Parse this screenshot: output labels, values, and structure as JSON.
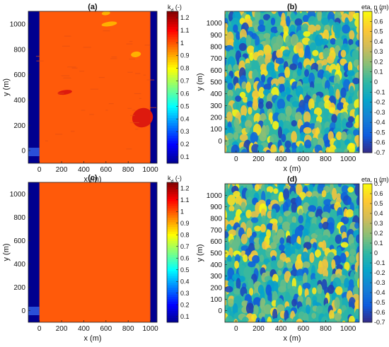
{
  "colors": {
    "jet": [
      "#00008f",
      "#0000ff",
      "#0080ff",
      "#00ffff",
      "#80ff80",
      "#ffff00",
      "#ff8000",
      "#ff0000",
      "#800000"
    ],
    "parula": [
      "#352a87",
      "#0f5cdd",
      "#1481d6",
      "#06a4ca",
      "#2eb7a4",
      "#87bf77",
      "#d1bb59",
      "#fec832",
      "#f9fb0e"
    ],
    "kd_fill": "#ff5a0a",
    "border_blue": "#00008f",
    "shoal_yellow": "#ffb000",
    "shoal_red": "#dd1a0e"
  },
  "chart_data": [
    {
      "id": "a",
      "type": "heatmap",
      "title": "(a)",
      "xlabel": "x (m)",
      "ylabel": "y (m)",
      "xticks": [
        "0",
        "200",
        "400",
        "600",
        "800",
        "1000"
      ],
      "yticks": [
        "0",
        "200",
        "400",
        "600",
        "800",
        "1000"
      ],
      "xlim": [
        -100,
        1060
      ],
      "ylim": [
        -100,
        1100
      ],
      "colorbar": {
        "label": "k_d (-)",
        "ticks": [
          "0.1",
          "0.2",
          "0.3",
          "0.4",
          "0.5",
          "0.6",
          "0.7",
          "0.8",
          "0.9",
          "1",
          "1.1",
          "1.2"
        ],
        "range": [
          0.05,
          1.25
        ],
        "colormap": "jet"
      },
      "background_value": 1.05,
      "left_band_value": 0.05,
      "right_band_value": 0.05,
      "band_x": [
        [
          -100,
          0
        ],
        [
          1000,
          1060
        ]
      ],
      "features": [
        {
          "x": 600,
          "y": 1085,
          "rx": 38,
          "ry": 16,
          "value": 0.9
        },
        {
          "x": 630,
          "y": 1000,
          "rx": 70,
          "ry": 18,
          "value": 0.9
        },
        {
          "x": 870,
          "y": 760,
          "rx": 45,
          "ry": 22,
          "value": 0.9
        },
        {
          "x": 230,
          "y": 460,
          "rx": 65,
          "ry": 18,
          "value": 1.15
        },
        {
          "x": 930,
          "y": 260,
          "rx": 95,
          "ry": 75,
          "value": 1.2
        }
      ]
    },
    {
      "id": "b",
      "type": "heatmap",
      "title": "(b)",
      "xlabel": "x (m)",
      "ylabel": "y (m)",
      "xticks": [
        "0",
        "200",
        "400",
        "600",
        "800",
        "1000"
      ],
      "yticks": [
        "0",
        "100",
        "200",
        "300",
        "400",
        "500",
        "600",
        "700",
        "800",
        "900",
        "1000"
      ],
      "xlim": [
        -100,
        1100
      ],
      "ylim": [
        -100,
        1100
      ],
      "colorbar": {
        "label": "eta, η (m)",
        "ticks": [
          "-0.7",
          "-0.6",
          "-0.5",
          "-0.4",
          "-0.3",
          "-0.2",
          "-0.1",
          "0",
          "0.1",
          "0.2",
          "0.3",
          "0.4",
          "0.5",
          "0.6",
          "0.7"
        ],
        "range": [
          -0.7,
          0.7
        ],
        "colormap": "parula"
      },
      "field": "random wave surface elevation"
    },
    {
      "id": "c",
      "type": "heatmap",
      "title": "(c)",
      "xlabel": "x (m)",
      "ylabel": "y (m)",
      "xticks": [
        "0",
        "200",
        "400",
        "600",
        "800",
        "1000"
      ],
      "yticks": [
        "0",
        "200",
        "400",
        "600",
        "800",
        "1000"
      ],
      "xlim": [
        -100,
        1060
      ],
      "ylim": [
        -100,
        1100
      ],
      "colorbar": {
        "label": "k_d (-)",
        "ticks": [
          "0.1",
          "0.2",
          "0.3",
          "0.4",
          "0.5",
          "0.6",
          "0.7",
          "0.8",
          "0.9",
          "1",
          "1.1",
          "1.2"
        ],
        "range": [
          0.05,
          1.25
        ],
        "colormap": "jet"
      },
      "background_value": 1.05,
      "left_band_value": 0.05,
      "right_band_value": 0.05,
      "band_x": [
        [
          -100,
          0
        ],
        [
          1000,
          1060
        ]
      ],
      "features": []
    },
    {
      "id": "d",
      "type": "heatmap",
      "title": "(d)",
      "xlabel": "x (m)",
      "ylabel": "y (m)",
      "xticks": [
        "0",
        "200",
        "400",
        "600",
        "800",
        "1000"
      ],
      "yticks": [
        "0",
        "100",
        "200",
        "300",
        "400",
        "500",
        "600",
        "700",
        "800",
        "900",
        "1000"
      ],
      "xlim": [
        -100,
        1100
      ],
      "ylim": [
        -100,
        1100
      ],
      "colorbar": {
        "label": "eta, η (m)",
        "ticks": [
          "-0.7",
          "-0.6",
          "-0.5",
          "-0.4",
          "-0.3",
          "-0.2",
          "-0.1",
          "0",
          "0.1",
          "0.2",
          "0.3",
          "0.4",
          "0.5",
          "0.6",
          "0.7"
        ],
        "range": [
          -0.7,
          0.7
        ],
        "colormap": "parula"
      },
      "field": "random wave surface elevation"
    }
  ]
}
